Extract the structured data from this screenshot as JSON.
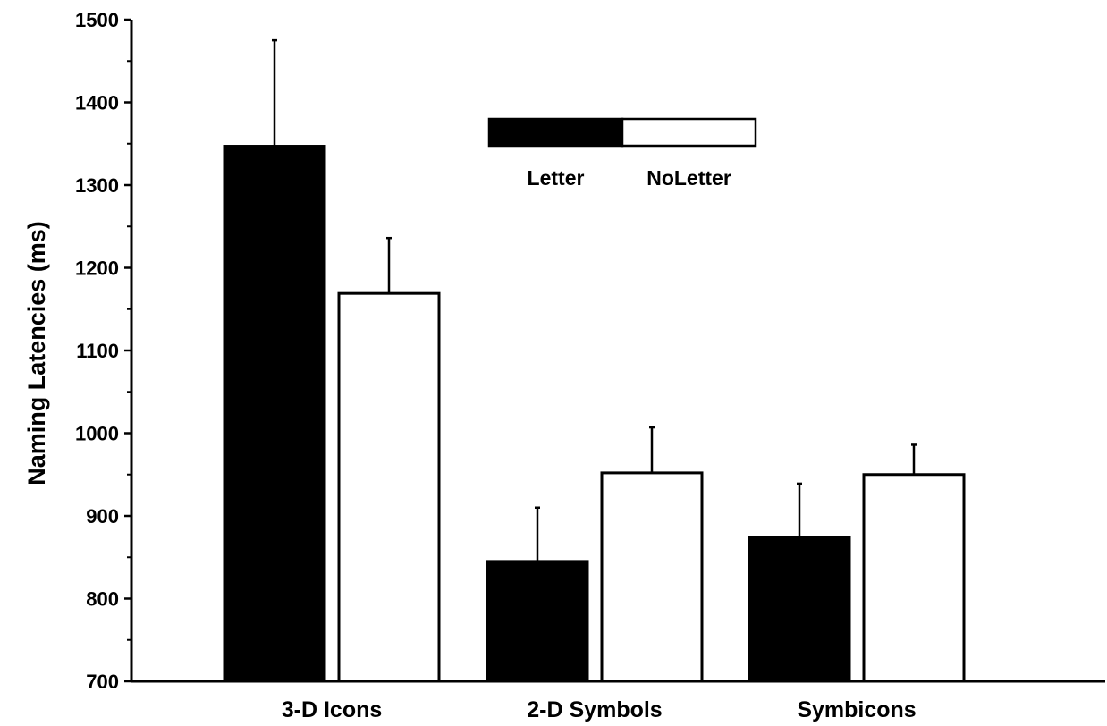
{
  "chart_data": {
    "type": "bar",
    "ylabel": "Naming Latencies (ms)",
    "xlabel": "",
    "ylim": [
      700,
      1500
    ],
    "yticks": [
      700,
      800,
      900,
      1000,
      1100,
      1200,
      1300,
      1400,
      1500
    ],
    "categories": [
      "3-D Icons",
      "2-D Symbols",
      "Symbicons"
    ],
    "series": [
      {
        "name": "Letter",
        "color": "#000000",
        "values": [
          1347,
          845,
          874
        ],
        "errors": [
          128,
          65,
          65
        ]
      },
      {
        "name": "NoLetter",
        "color": "#ffffff",
        "values": [
          1169,
          952,
          950
        ],
        "errors": [
          67,
          55,
          36
        ]
      }
    ],
    "legend_position": "top-center",
    "grid": false
  }
}
